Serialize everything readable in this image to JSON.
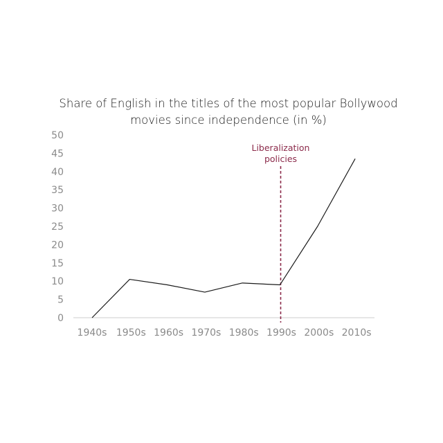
{
  "chart_data": {
    "type": "line",
    "title_lines": [
      "Share of English in the titles of the most popular Bollywood",
      "movies since independence  (in %)"
    ],
    "categories": [
      "1940s",
      "1950s",
      "1960s",
      "1970s",
      "1980s",
      "1990s",
      "2000s",
      "2010s"
    ],
    "values": [
      0,
      10.5,
      9,
      7,
      9.5,
      9,
      25,
      43.5
    ],
    "ylim": [
      0,
      50
    ],
    "yticks": [
      0,
      5,
      10,
      15,
      20,
      25,
      30,
      35,
      40,
      45,
      50
    ],
    "grid": false,
    "line_color": "#1a1a1a",
    "axis_color": "#cccccc",
    "annotation": {
      "at_category": "1990s",
      "label_lines": [
        "Liberalization",
        "policies"
      ],
      "color": "#8b2a4a",
      "style": "dashed-vertical-line"
    }
  }
}
